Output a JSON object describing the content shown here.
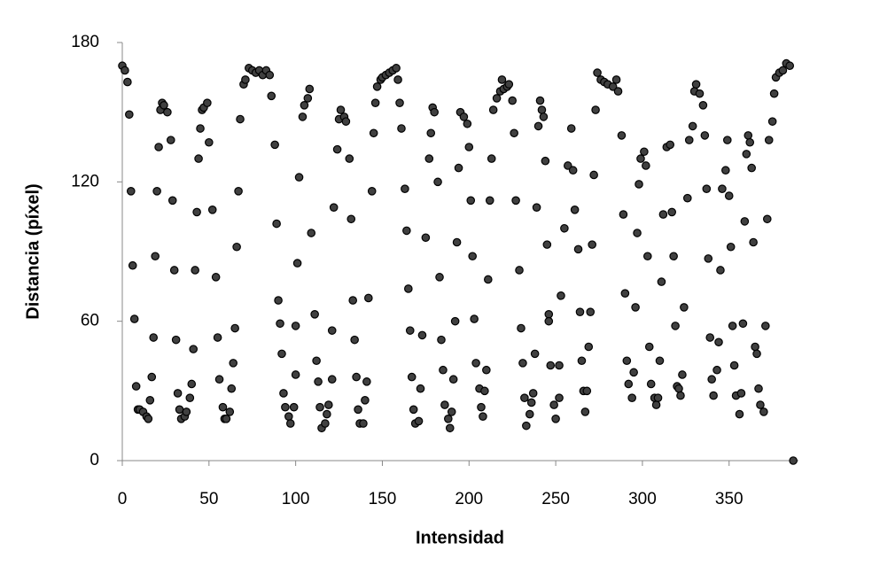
{
  "chart_data": {
    "type": "scatter",
    "x_label": "Intensidad",
    "y_label": "Distancia (píxel)",
    "color": "#404040",
    "xlim": [
      0,
      390
    ],
    "xticks": [
      0,
      50,
      100,
      150,
      200,
      250,
      300,
      350
    ],
    "ylim": [
      0,
      180
    ],
    "yticks": [
      0,
      60,
      120,
      180
    ],
    "x": [
      0,
      1.5,
      3,
      4,
      5,
      6,
      7,
      8,
      9,
      10,
      12,
      14,
      15,
      16,
      17,
      18,
      19,
      20,
      21,
      22,
      23,
      24,
      26,
      28,
      29,
      30,
      31,
      32,
      33,
      34,
      36,
      37,
      39,
      40,
      41,
      42,
      43,
      44,
      45,
      46,
      47,
      49,
      50,
      52,
      54,
      55,
      56,
      58,
      59,
      60,
      62,
      63,
      64,
      65,
      66,
      67,
      68,
      70,
      71,
      73,
      75,
      77,
      79,
      81,
      83,
      85,
      86,
      88,
      89,
      90,
      91,
      92,
      93,
      94,
      96,
      97,
      99,
      100,
      100,
      101,
      102,
      104,
      105,
      107,
      108,
      109,
      111,
      112,
      113,
      114,
      115,
      117,
      118,
      119,
      121,
      121,
      122,
      124,
      125,
      126,
      128,
      129,
      131,
      132,
      133,
      134,
      135,
      136,
      137,
      139,
      140,
      141,
      142,
      144,
      145,
      146,
      147,
      149,
      150,
      152,
      154,
      156,
      158,
      159,
      160,
      161,
      163,
      164,
      165,
      166,
      167,
      168,
      169,
      171,
      172,
      173,
      175,
      177,
      178,
      179,
      180,
      182,
      183,
      184,
      185,
      186,
      188,
      189,
      190,
      191,
      192,
      193,
      194,
      195,
      197,
      199,
      200,
      201,
      202,
      203,
      204,
      206,
      207,
      208,
      209,
      210,
      211,
      212,
      213,
      214,
      216,
      218,
      219,
      220,
      222,
      223,
      225,
      226,
      227,
      229,
      230,
      231,
      232,
      233,
      235,
      236,
      237,
      238,
      239,
      240,
      241,
      242,
      243,
      244,
      245,
      246,
      246,
      247,
      249,
      250,
      252,
      252,
      253,
      255,
      257,
      259,
      260,
      261,
      263,
      264,
      265,
      266,
      267,
      268,
      269,
      270,
      271,
      272,
      273,
      274,
      276,
      278,
      280,
      283,
      285,
      286,
      288,
      289,
      290,
      291,
      292,
      294,
      295,
      296,
      297,
      298,
      299,
      301,
      302,
      303,
      304,
      305,
      307,
      308,
      309,
      310,
      311,
      312,
      314,
      316,
      317,
      318,
      319,
      320,
      321,
      322,
      323,
      324,
      326,
      327,
      329,
      330,
      331,
      333,
      335,
      336,
      337,
      338,
      339,
      340,
      341,
      343,
      344,
      345,
      346,
      348,
      349,
      350,
      351,
      352,
      353,
      354,
      356,
      357,
      358,
      359,
      360,
      361,
      362,
      363,
      364,
      365,
      366,
      367,
      368,
      370,
      371,
      372,
      373,
      375,
      376,
      377,
      379,
      381,
      383,
      385,
      387
    ],
    "values": [
      170,
      168,
      163,
      149,
      116,
      84,
      61,
      32,
      22,
      22,
      21,
      19,
      18,
      26,
      36,
      53,
      88,
      116,
      135,
      151,
      154,
      153,
      150,
      138,
      112,
      82,
      52,
      29,
      22,
      18,
      19,
      21,
      27,
      33,
      48,
      82,
      107,
      130,
      143,
      151,
      152,
      154,
      137,
      108,
      79,
      53,
      35,
      23,
      18,
      18,
      21,
      31,
      42,
      57,
      92,
      116,
      147,
      162,
      164,
      169,
      168,
      167,
      168,
      166,
      168,
      166,
      157,
      136,
      102,
      69,
      59,
      46,
      29,
      23,
      19,
      16,
      23,
      37,
      58,
      85,
      122,
      148,
      153,
      156,
      160,
      98,
      63,
      43,
      34,
      23,
      14,
      16,
      20,
      24,
      35,
      56,
      109,
      134,
      147,
      151,
      148,
      146,
      130,
      104,
      69,
      52,
      36,
      22,
      16,
      16,
      26,
      34,
      70,
      116,
      141,
      154,
      161,
      164,
      165,
      166,
      167,
      168,
      169,
      164,
      154,
      143,
      117,
      99,
      74,
      56,
      36,
      22,
      16,
      17,
      31,
      54,
      96,
      130,
      141,
      152,
      150,
      120,
      79,
      52,
      39,
      24,
      18,
      14,
      21,
      35,
      60,
      94,
      126,
      150,
      148,
      145,
      135,
      112,
      88,
      61,
      42,
      31,
      23,
      19,
      30,
      39,
      78,
      112,
      130,
      151,
      156,
      159,
      164,
      160,
      161,
      162,
      155,
      141,
      112,
      82,
      57,
      42,
      27,
      15,
      20,
      25,
      29,
      46,
      109,
      144,
      155,
      151,
      148,
      129,
      93,
      63,
      60,
      41,
      24,
      18,
      27,
      41,
      71,
      100,
      127,
      143,
      125,
      108,
      91,
      64,
      43,
      30,
      21,
      30,
      49,
      64,
      93,
      123,
      151,
      167,
      164,
      163,
      162,
      161,
      164,
      159,
      140,
      106,
      72,
      43,
      33,
      27,
      38,
      66,
      98,
      119,
      130,
      133,
      127,
      88,
      49,
      33,
      27,
      24,
      27,
      43,
      77,
      106,
      135,
      136,
      107,
      88,
      58,
      32,
      31,
      28,
      37,
      66,
      113,
      138,
      144,
      159,
      162,
      158,
      153,
      140,
      117,
      87,
      53,
      35,
      28,
      39,
      51,
      82,
      117,
      125,
      138,
      114,
      92,
      58,
      41,
      28,
      20,
      29,
      59,
      103,
      132,
      140,
      137,
      126,
      94,
      49,
      46,
      31,
      24,
      21,
      58,
      104,
      138,
      146,
      158,
      165,
      167,
      168,
      171,
      170,
      0
    ]
  }
}
